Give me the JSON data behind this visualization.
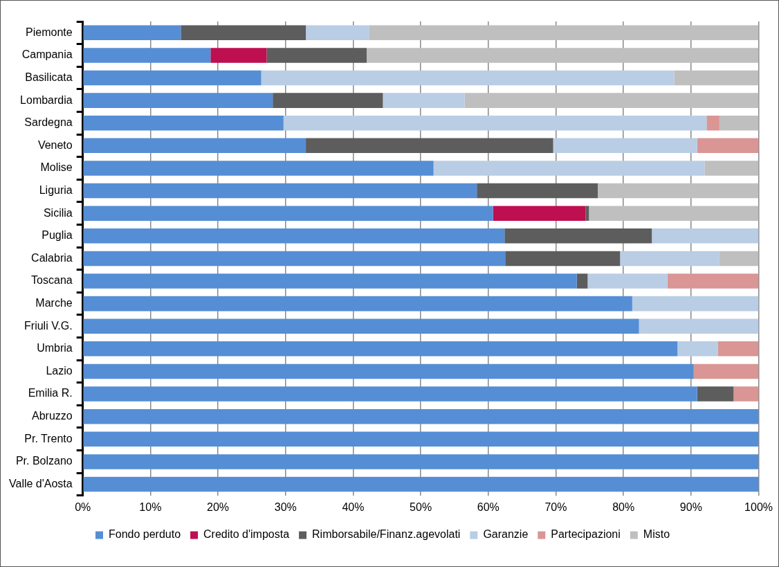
{
  "chart_data": {
    "type": "bar",
    "orientation": "horizontal",
    "stacked": true,
    "categories": [
      "Piemonte",
      "Campania",
      "Basilicata",
      "Lombardia",
      "Sardegna",
      "Veneto",
      "Molise",
      "Liguria",
      "Sicilia",
      "Puglia",
      "Calabria",
      "Toscana",
      "Marche",
      "Friuli V.G.",
      "Umbria",
      "Lazio",
      "Emilia R.",
      "Abruzzo",
      "Pr. Trento",
      "Pr. Bolzano",
      "Valle d'Aosta"
    ],
    "series": [
      {
        "name": "Fondo perduto",
        "color": "#558ed5",
        "values": [
          14.5,
          18.9,
          26.4,
          28.1,
          29.7,
          33.0,
          51.9,
          58.3,
          60.7,
          62.4,
          62.5,
          73.1,
          81.3,
          82.3,
          88.0,
          90.4,
          90.9,
          100,
          100,
          100,
          100
        ]
      },
      {
        "name": "Credito d'imposta",
        "color": "#be0f50",
        "values": [
          0,
          8.3,
          0,
          0,
          0,
          0,
          0,
          0,
          13.7,
          0,
          0,
          0,
          0,
          0,
          0,
          0,
          0,
          0,
          0,
          0,
          0
        ]
      },
      {
        "name": "Rimborsabile/Finanz.agevolati",
        "color": "#5d5d5d",
        "values": [
          18.5,
          14.8,
          0,
          16.3,
          0,
          36.6,
          0,
          17.9,
          0.5,
          21.8,
          17.0,
          1.6,
          0,
          0,
          0,
          0,
          5.4,
          0,
          0,
          0,
          0
        ]
      },
      {
        "name": "Garanzie",
        "color": "#b9cde5",
        "values": [
          9.4,
          0,
          61.1,
          12.1,
          62.6,
          21.3,
          40.1,
          0,
          0,
          15.8,
          14.7,
          11.8,
          18.7,
          17.7,
          6.0,
          0,
          0,
          0,
          0,
          0,
          0
        ]
      },
      {
        "name": "Partecipazioni",
        "color": "#d99694",
        "values": [
          0,
          0,
          0,
          0,
          1.9,
          9.1,
          0,
          0,
          0,
          0,
          0,
          13.5,
          0,
          0,
          6.0,
          9.6,
          3.7,
          0,
          0,
          0,
          0
        ]
      },
      {
        "name": "Misto",
        "color": "#bfbfbf",
        "values": [
          57.6,
          58.0,
          12.5,
          43.5,
          5.8,
          0,
          8.0,
          23.8,
          25.1,
          0,
          5.8,
          0,
          0,
          0,
          0,
          0,
          0,
          0,
          0,
          0,
          0
        ]
      }
    ],
    "xlim": [
      0,
      100
    ],
    "xticks": [
      {
        "value": 0,
        "label": "0%"
      },
      {
        "value": 10,
        "label": "10%"
      },
      {
        "value": 20,
        "label": "20%"
      },
      {
        "value": 30,
        "label": "30%"
      },
      {
        "value": 40,
        "label": "40%"
      },
      {
        "value": 50,
        "label": "50%"
      },
      {
        "value": 60,
        "label": "60%"
      },
      {
        "value": 70,
        "label": "70%"
      },
      {
        "value": 80,
        "label": "80%"
      },
      {
        "value": 90,
        "label": "90%"
      },
      {
        "value": 100,
        "label": "100%"
      }
    ],
    "grid": "x",
    "legend": "bottom"
  }
}
